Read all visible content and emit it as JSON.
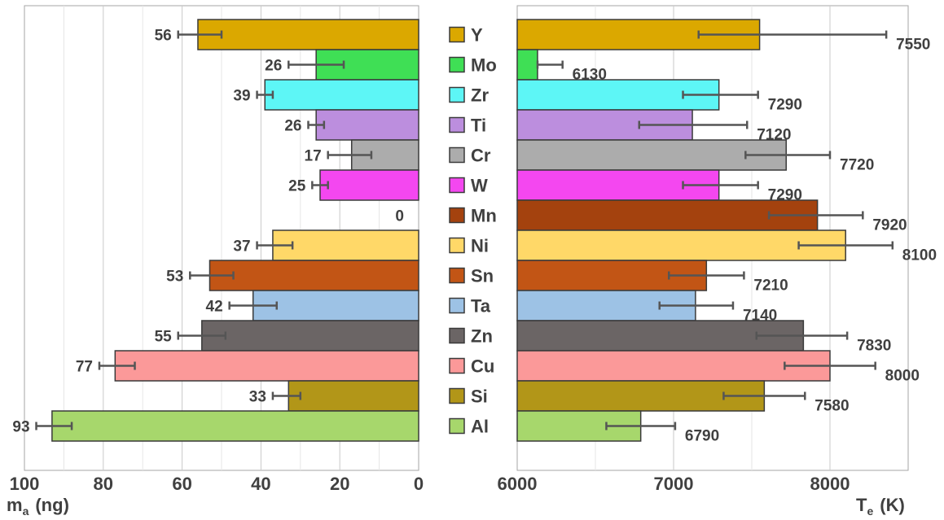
{
  "chart_data": [
    {
      "type": "bar",
      "orientation": "horizontal",
      "direction": "reversed",
      "categories": [
        "Y",
        "Mo",
        "Zr",
        "Ti",
        "Cr",
        "W",
        "Mn",
        "Ni",
        "Sn",
        "Ta",
        "Zn",
        "Cu",
        "Si",
        "Al"
      ],
      "values": [
        56,
        26,
        39,
        26,
        17,
        25,
        0,
        37,
        53,
        42,
        55,
        77,
        33,
        93
      ],
      "error_low": [
        61,
        33,
        41,
        28,
        23,
        27,
        0,
        41,
        58,
        48,
        61,
        81,
        37,
        97
      ],
      "error_high": [
        50,
        19,
        37,
        24,
        12,
        23,
        0,
        32,
        47,
        36,
        49,
        72,
        30,
        88
      ],
      "data_labels": [
        "56",
        "26",
        "39",
        "26",
        "17",
        "25",
        "0",
        "37",
        "53",
        "42",
        "55",
        "77",
        "33",
        "93"
      ],
      "xlabel": "m",
      "xlabel_sub": "a",
      "xlabel_unit": "(ng)",
      "xlim": [
        100,
        0
      ],
      "xticks": [
        "100",
        "80",
        "60",
        "40",
        "20",
        "0"
      ],
      "xtick_values": [
        100,
        80,
        60,
        40,
        20,
        0
      ],
      "grid": true
    },
    {
      "type": "bar",
      "orientation": "horizontal",
      "categories": [
        "Y",
        "Mo",
        "Zr",
        "Ti",
        "Cr",
        "W",
        "Mn",
        "Ni",
        "Sn",
        "Ta",
        "Zn",
        "Cu",
        "Si",
        "Al"
      ],
      "values": [
        7550,
        6130,
        7290,
        7120,
        7720,
        7290,
        7920,
        8100,
        7210,
        7140,
        7830,
        8000,
        7580,
        6790
      ],
      "error_low": [
        7160,
        6130,
        7060,
        6780,
        7460,
        7060,
        7610,
        7800,
        6970,
        6910,
        7530,
        7710,
        7320,
        6570
      ],
      "error_high": [
        8360,
        6290,
        7540,
        7470,
        8000,
        7540,
        8210,
        8400,
        7450,
        7380,
        8110,
        8290,
        7840,
        7010
      ],
      "data_labels": [
        "7550",
        "6130",
        "7290",
        "7120",
        "7720",
        "7290",
        "7920",
        "8100",
        "7210",
        "7140",
        "7830",
        "8000",
        "7580",
        "6790"
      ],
      "xlabel": "T",
      "xlabel_sub": "e",
      "xlabel_unit": "(K)",
      "xlim": [
        6000,
        8500
      ],
      "xticks": [
        "6000",
        "7000",
        "8000"
      ],
      "xtick_values": [
        6000,
        7000,
        8000
      ],
      "grid": true
    }
  ],
  "legend": {
    "placement": "center",
    "items": [
      {
        "label": "Y",
        "color": "#dba800"
      },
      {
        "label": "Mo",
        "color": "#3fdf55"
      },
      {
        "label": "Zr",
        "color": "#5df6f6"
      },
      {
        "label": "Ti",
        "color": "#bc8ede"
      },
      {
        "label": "Cr",
        "color": "#acacac"
      },
      {
        "label": "W",
        "color": "#f447f0"
      },
      {
        "label": "Mn",
        "color": "#a4420e"
      },
      {
        "label": "Ni",
        "color": "#ffd868"
      },
      {
        "label": "Sn",
        "color": "#c25515"
      },
      {
        "label": "Ta",
        "color": "#9dc2e5"
      },
      {
        "label": "Zn",
        "color": "#6b6565"
      },
      {
        "label": "Cu",
        "color": "#fb9999"
      },
      {
        "label": "Si",
        "color": "#b29618"
      },
      {
        "label": "Al",
        "color": "#a7d76c"
      }
    ]
  },
  "colors": {
    "bar_stroke": "#3a3a3a",
    "error_bar": "#555555",
    "grid": "#c9c9c9",
    "frame": "#a6a6a6",
    "text": "#404040"
  }
}
